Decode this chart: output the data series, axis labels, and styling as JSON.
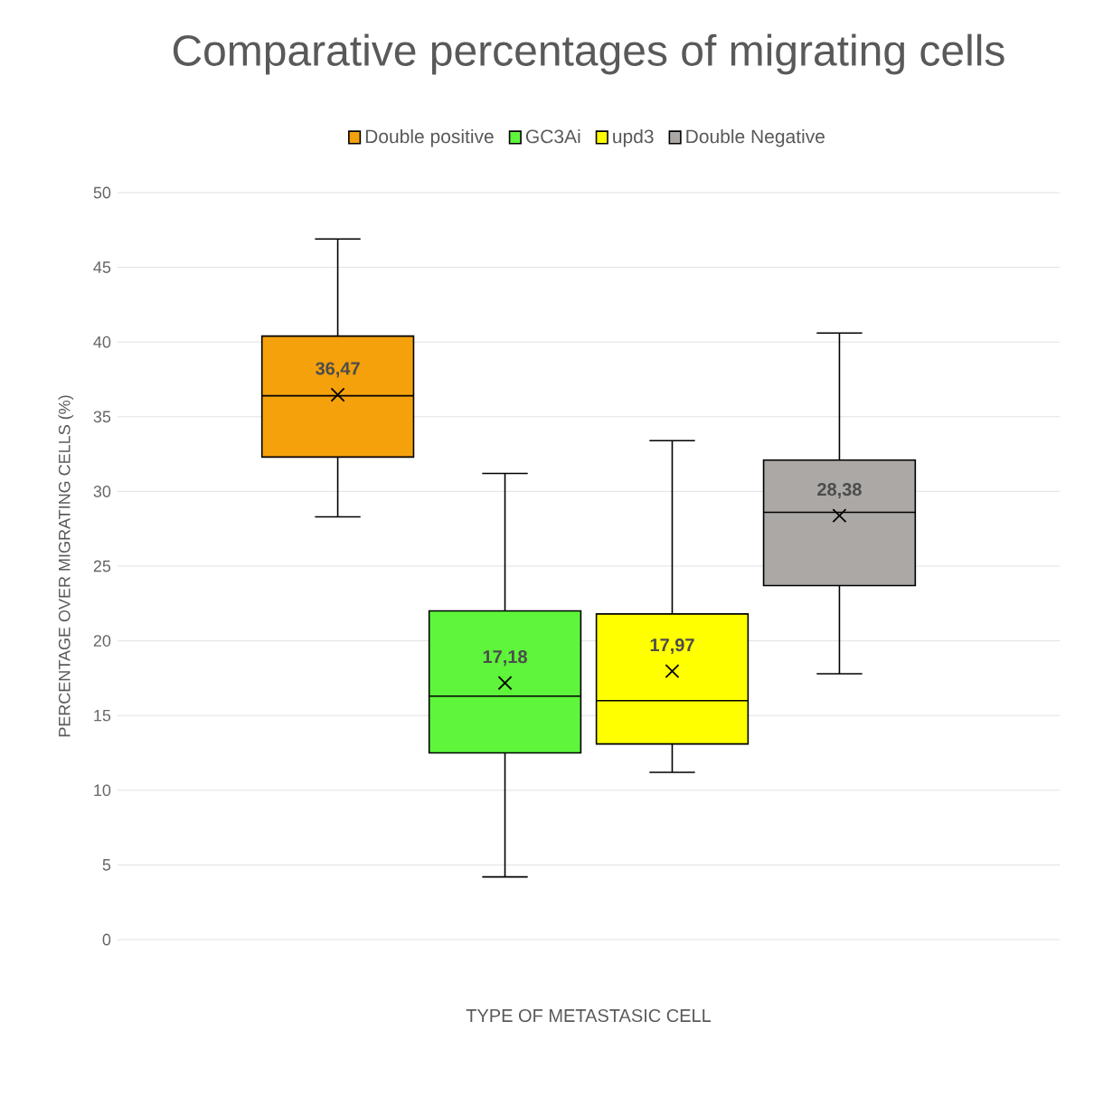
{
  "chart_data": {
    "type": "box",
    "title": "Comparative percentages of migrating cells",
    "xlabel": "TYPE OF METASTASIC CELL",
    "ylabel": "PERCENTAGE OVER MIGRATING CELLS (%)",
    "categories": [
      null
    ],
    "series": [
      {
        "name": "Double positive",
        "color": "#f4a10b",
        "boxes": [
          {
            "low": 28.3,
            "q1": 32.3,
            "median": 36.4,
            "q3": 40.4,
            "high": 46.9,
            "mean": 36.47
          }
        ],
        "value_labels": [
          "36,47"
        ]
      },
      {
        "name": "GC3Ai",
        "color": "#5ef53a",
        "boxes": [
          {
            "low": 4.2,
            "q1": 12.5,
            "median": 16.3,
            "q3": 22.0,
            "high": 31.2,
            "mean": 17.18
          }
        ],
        "value_labels": [
          "17,18"
        ]
      },
      {
        "name": "upd3",
        "color": "#ffff00",
        "boxes": [
          {
            "low": 11.2,
            "q1": 13.1,
            "median": 16.0,
            "q3": 21.8,
            "high": 33.4,
            "mean": 17.97
          }
        ],
        "value_labels": [
          "17,97"
        ]
      },
      {
        "name": "Double Negative",
        "color": "#aba8a6",
        "boxes": [
          {
            "low": 17.8,
            "q1": 23.7,
            "median": 28.6,
            "q3": 32.1,
            "high": 40.6,
            "mean": 28.38
          }
        ],
        "value_labels": [
          "28,38"
        ]
      }
    ],
    "ylim": [
      0,
      50
    ],
    "yticks": [
      0,
      5,
      10,
      15,
      20,
      25,
      30,
      35,
      40,
      45,
      50
    ],
    "grid": "y",
    "legend": "top",
    "tick_labels": "y"
  }
}
